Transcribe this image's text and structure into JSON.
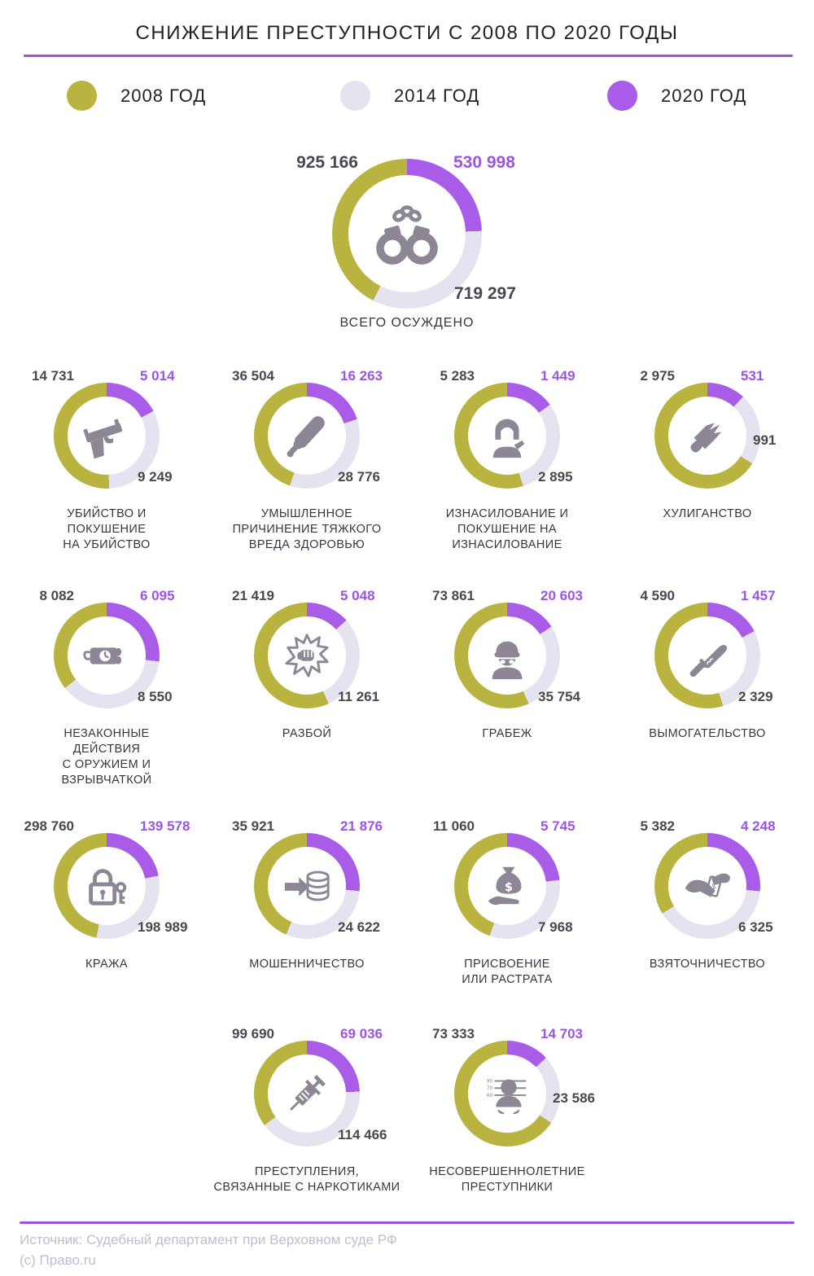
{
  "title": "СНИЖЕНИЕ ПРЕСТУПНОСТИ С 2008 ПО 2020 ГОДЫ",
  "legend": [
    {
      "label": "2008 ГОД",
      "color": "#b9b440"
    },
    {
      "label": "2014 ГОД",
      "color": "#e6e3f0"
    },
    {
      "label": "2020 ГОД",
      "color": "#a85ce8"
    }
  ],
  "footer": {
    "source": "Источник: Судебный департамент при Верховном суде РФ",
    "copyright": "(с) Право.ru"
  },
  "chart_data": {
    "type": "pie",
    "variant": "donut-multiples",
    "start_angle": "top",
    "direction": "clockwise",
    "segment_order": [
      "2020",
      "2014",
      "2008"
    ],
    "colors": {
      "2008": "#b9b440",
      "2014": "#e6e3f0",
      "2020": "#a85ce8",
      "accent_line": "#9b51e0",
      "icon": "#8d8795",
      "value_text": "#4a4750",
      "value_text_2020": "#9b55e6"
    },
    "charts": [
      {
        "id": "total",
        "label": "ВСЕГО ОСУЖДЕНО",
        "icon": "handcuffs-icon",
        "values": {
          "2008": 925166,
          "2014": 719297,
          "2020": 530998
        }
      },
      {
        "id": "murder",
        "label": "УБИЙСТВО И\nПОКУШЕНИЕ\nНА УБИЙСТВО",
        "icon": "pistol-icon",
        "values": {
          "2008": 14731,
          "2014": 9249,
          "2020": 5014
        }
      },
      {
        "id": "grievous-harm",
        "label": "УМЫШЛЕННОЕ\nПРИЧИНЕНИЕ ТЯЖКОГО\nВРЕДА ЗДОРОВЬЮ",
        "icon": "baseball-bat-icon",
        "values": {
          "2008": 36504,
          "2014": 28776,
          "2020": 16263
        }
      },
      {
        "id": "rape",
        "label": "ИЗНАСИЛОВАНИЕ И\nПОКУШЕНИЕ НА\nИЗНАСИЛОВАНИЕ",
        "icon": "woman-icon",
        "values": {
          "2008": 5283,
          "2014": 2895,
          "2020": 1449
        }
      },
      {
        "id": "hooliganism",
        "label": "ХУЛИГАНСТВО",
        "icon": "broken-bottle-icon",
        "values": {
          "2008": 2975,
          "2014": 991,
          "2020": 531
        }
      },
      {
        "id": "illegal-weapons",
        "label": "НЕЗАКОННЫЕ\nДЕЙСТВИЯ\nС ОРУЖИЕМ И\nВЗРЫВЧАТКОЙ",
        "icon": "dynamite-icon",
        "values": {
          "2008": 8082,
          "2014": 8550,
          "2020": 6095
        }
      },
      {
        "id": "robbery-armed",
        "label": "РАЗБОЙ",
        "icon": "fist-burst-icon",
        "values": {
          "2008": 21419,
          "2014": 11261,
          "2020": 5048
        }
      },
      {
        "id": "robbery",
        "label": "ГРАБЕЖ",
        "icon": "burglar-icon",
        "values": {
          "2008": 73861,
          "2014": 35754,
          "2020": 20603
        }
      },
      {
        "id": "extortion",
        "label": "ВЫМОГАТЕЛЬСТВО",
        "icon": "knife-icon",
        "values": {
          "2008": 4590,
          "2014": 2329,
          "2020": 1457
        }
      },
      {
        "id": "theft",
        "label": "КРАЖА",
        "icon": "padlock-key-icon",
        "values": {
          "2008": 298760,
          "2014": 198989,
          "2020": 139578
        }
      },
      {
        "id": "fraud",
        "label": "МОШЕННИЧЕСТВО",
        "icon": "arrow-coins-icon",
        "values": {
          "2008": 35921,
          "2014": 24622,
          "2020": 21876
        }
      },
      {
        "id": "embezzlement",
        "label": "ПРИСВОЕНИЕ\nИЛИ РАСТРАТА",
        "icon": "moneybag-hand-icon",
        "values": {
          "2008": 11060,
          "2014": 7968,
          "2020": 5745
        }
      },
      {
        "id": "bribery",
        "label": "ВЗЯТОЧНИЧЕСТВО",
        "icon": "bribe-hands-icon",
        "values": {
          "2008": 5382,
          "2014": 6325,
          "2020": 4248
        }
      },
      {
        "id": "drug-crimes",
        "label": "ПРЕСТУПЛЕНИЯ,\nСВЯЗАННЫЕ С НАРКОТИКАМИ",
        "icon": "syringe-icon",
        "values": {
          "2008": 99690,
          "2014": 114466,
          "2020": 69036
        }
      },
      {
        "id": "juvenile",
        "label": "НЕСОВЕРШЕННОЛЕТНИЕ\nПРЕСТУПНИКИ",
        "icon": "mugshot-icon",
        "values": {
          "2008": 73333,
          "2014": 23586,
          "2020": 14703
        }
      }
    ]
  }
}
